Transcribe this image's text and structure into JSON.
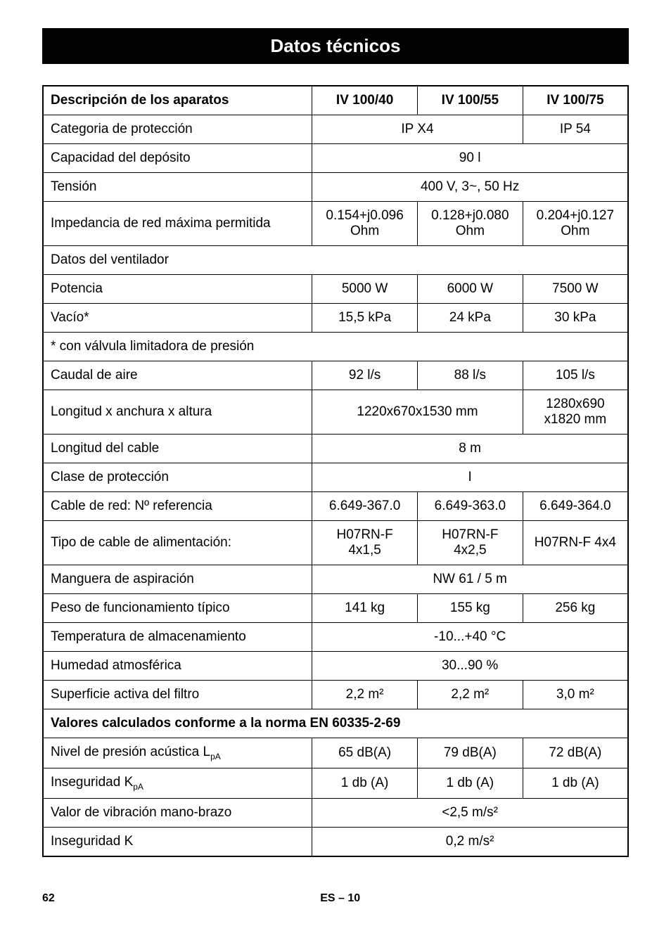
{
  "title": "Datos técnicos",
  "header": {
    "desc": "Descripción de los aparatos",
    "col1": "IV 100/40",
    "col2": "IV 100/55",
    "col3": "IV 100/75"
  },
  "rows": {
    "categoria_label": "Categoria de protección",
    "categoria_v12": "IP X4",
    "categoria_v3": "IP 54",
    "capacidad_label": "Capacidad del depósito",
    "capacidad_val": "90 l",
    "tension_label": "Tensión",
    "tension_val": "400 V, 3~, 50 Hz",
    "impedancia_label": "Impedancia de red máxima permitida",
    "impedancia_v1": "0.154+j0.096 Ohm",
    "impedancia_v2": "0.128+j0.080 Ohm",
    "impedancia_v3": "0.204+j0.127 Ohm",
    "datos_ventilador": "Datos del ventilador",
    "potencia_label": "Potencia",
    "potencia_v1": "5000 W",
    "potencia_v2": "6000 W",
    "potencia_v3": "7500 W",
    "vacio_label": "Vacío*",
    "vacio_v1": "15,5 kPa",
    "vacio_v2": "24 kPa",
    "vacio_v3": "30 kPa",
    "valvula_note": "* con válvula limitadora de presión",
    "caudal_label": "Caudal de aire",
    "caudal_v1": "92 l/s",
    "caudal_v2": "88 l/s",
    "caudal_v3": "105 l/s",
    "longitud_label": "Longitud x anchura x altura",
    "longitud_v12": "1220x670x1530 mm",
    "longitud_v3": "1280x690 x1820 mm",
    "cable_len_label": "Longitud del cable",
    "cable_len_val": "8 m",
    "clase_label": "Clase de protección",
    "clase_val": "I",
    "cable_ref_label": "Cable de red: Nº referencia",
    "cable_ref_v1": "6.649-367.0",
    "cable_ref_v2": "6.649-363.0",
    "cable_ref_v3": "6.649-364.0",
    "cable_tipo_label": "Tipo de cable de alimentación:",
    "cable_tipo_v1": "H07RN-F 4x1,5",
    "cable_tipo_v2": "H07RN-F 4x2,5",
    "cable_tipo_v3": "H07RN-F 4x4",
    "manguera_label": "Manguera de aspiración",
    "manguera_val": "NW 61 / 5 m",
    "peso_label": "Peso de funcionamiento típico",
    "peso_v1": "141 kg",
    "peso_v2": "155 kg",
    "peso_v3": "256 kg",
    "temp_label": "Temperatura de almacenamiento",
    "temp_val": "-10...+40 °C",
    "humedad_label": "Humedad atmosférica",
    "humedad_val": "30...90 %",
    "superficie_label": "Superficie activa del filtro",
    "superficie_v1": "2,2 m²",
    "superficie_v2": "2,2 m²",
    "superficie_v3": "3,0 m²",
    "valores_header": "Valores calculados conforme a la norma EN 60335-2-69",
    "presion_label_pre": "Nivel de presión acústica L",
    "presion_label_sub": "pA",
    "presion_v1": "65 dB(A)",
    "presion_v2": "79 dB(A)",
    "presion_v3": "72 dB(A)",
    "inseguridad_k_label_pre": "Inseguridad K",
    "inseguridad_k_label_sub": "pA",
    "inseguridad_k_v1": "1 db (A)",
    "inseguridad_k_v2": "1 db (A)",
    "inseguridad_k_v3": "1 db (A)",
    "vibracion_label": "Valor de vibración mano-brazo",
    "vibracion_val": "<2,5 m/s²",
    "inseguridad_label": "Inseguridad K",
    "inseguridad_val": "0,2 m/s²"
  },
  "footer": {
    "page": "62",
    "locale": "ES",
    "dash": "–",
    "pagenum": "10"
  }
}
